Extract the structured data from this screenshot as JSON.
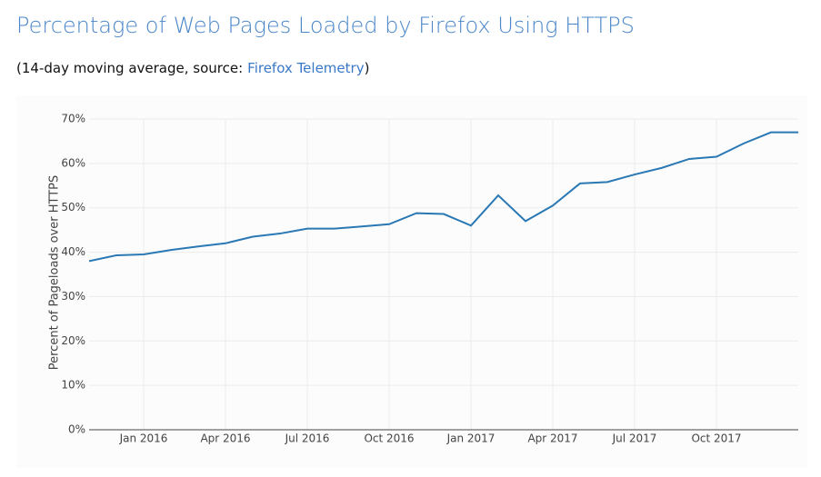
{
  "chart_data": {
    "type": "line",
    "title": "Percentage of Web Pages Loaded by Firefox Using HTTPS",
    "subtitle": "(14-day moving average, source:",
    "source_link": "Firefox Telemetry",
    "subtitle_end": ")",
    "y_label": "Percent of Pageloads over HTTPS",
    "x": [
      "2015-11",
      "2015-12",
      "2016-01",
      "2016-02",
      "2016-03",
      "2016-04",
      "2016-05",
      "2016-06",
      "2016-07",
      "2016-08",
      "2016-09",
      "2016-10",
      "2016-11",
      "2016-12",
      "2017-01",
      "2017-02",
      "2017-03",
      "2017-04",
      "2017-05",
      "2017-06",
      "2017-07",
      "2017-08",
      "2017-09",
      "2017-10",
      "2017-11",
      "2017-12",
      "2018-01"
    ],
    "series": [
      {
        "name": "HTTPS",
        "color": "#2a78b4",
        "values": [
          38,
          39.3,
          39.5,
          40.5,
          41.3,
          42,
          43.5,
          44.2,
          45.3,
          45.3,
          45.8,
          46.3,
          48.8,
          48.6,
          46,
          52.8,
          47,
          50.5,
          55.5,
          55.8,
          57.5,
          59,
          61,
          61.5,
          64.5,
          67,
          67
        ]
      }
    ],
    "xlim": [
      "2015-11",
      "2018-01"
    ],
    "xticks": [
      {
        "value": "2016-01",
        "label": "Jan 2016"
      },
      {
        "value": "2016-04",
        "label": "Apr 2016"
      },
      {
        "value": "2016-07",
        "label": "Jul 2016"
      },
      {
        "value": "2016-10",
        "label": "Oct 2016"
      },
      {
        "value": "2017-01",
        "label": "Jan 2017"
      },
      {
        "value": "2017-04",
        "label": "Apr 2017"
      },
      {
        "value": "2017-07",
        "label": "Jul 2017"
      },
      {
        "value": "2017-10",
        "label": "Oct 2017"
      }
    ],
    "ylim": [
      0,
      70
    ],
    "yticks": [
      {
        "value": 0,
        "label": "0%"
      },
      {
        "value": 10,
        "label": "10%"
      },
      {
        "value": 20,
        "label": "20%"
      },
      {
        "value": 30,
        "label": "30%"
      },
      {
        "value": 40,
        "label": "40%"
      },
      {
        "value": 50,
        "label": "50%"
      },
      {
        "value": 60,
        "label": "60%"
      },
      {
        "value": 70,
        "label": "70%"
      }
    ],
    "grid": true
  }
}
